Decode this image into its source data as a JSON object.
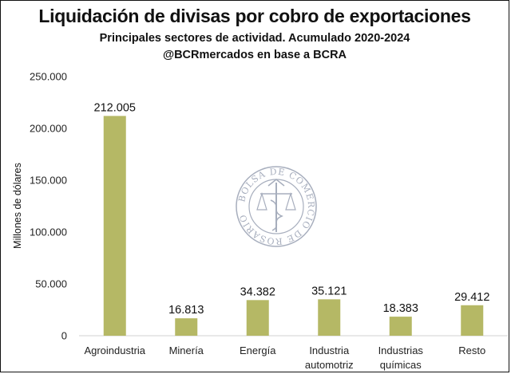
{
  "header": {
    "title": "Liquidación de divisas por cobro de exportaciones",
    "subtitle": "Principales sectores de actividad. Acumulado 2020-2024",
    "source": "@BCRmercados en base a BCRA"
  },
  "watermark": {
    "text": "BOLSA DE COMERCIO DE ROSARIO",
    "color": "#8a93a8"
  },
  "chart_data": {
    "type": "bar",
    "title": "Liquidación de divisas por cobro de exportaciones",
    "subtitle": "Principales sectores de actividad. Acumulado 2020-2024",
    "ylabel": "Millones de dólares",
    "xlabel": "",
    "ylim": [
      0,
      250000
    ],
    "yticks": [
      0,
      50000,
      100000,
      150000,
      200000,
      250000
    ],
    "ytick_labels": [
      "0",
      "50.000",
      "100.000",
      "150.000",
      "200.000",
      "250.000"
    ],
    "categories": [
      [
        "Agroindustria"
      ],
      [
        "Minería"
      ],
      [
        "Energía"
      ],
      [
        "Industria",
        "automotriz"
      ],
      [
        "Industrias",
        "químicas"
      ],
      [
        "Resto"
      ]
    ],
    "values": [
      212005,
      16813,
      34382,
      35121,
      18383,
      29412
    ],
    "value_labels": [
      "212.005",
      "16.813",
      "34.382",
      "35.121",
      "18.383",
      "29.412"
    ],
    "bar_color": "#b5b865",
    "grid": false,
    "legend": "none"
  }
}
